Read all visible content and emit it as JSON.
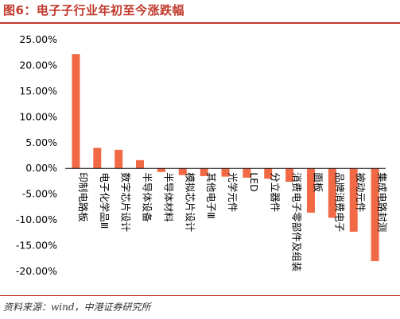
{
  "figure": {
    "title": "图6：电子子行业年初至今涨跌幅",
    "source": "资料来源：wind，中港证券研究所"
  },
  "colors": {
    "bar": "#f26a45",
    "title": "#c0392b",
    "axis": "#000000"
  },
  "chart_data": {
    "type": "bar",
    "categories": [
      "印制电路板",
      "电子化学品Ⅲ",
      "数字芯片设计",
      "半导体设备",
      "半导体材料",
      "模拟芯片设计",
      "其他电子Ⅲ",
      "光学元件",
      "LED",
      "分立器件",
      "消费电子零部件及组装",
      "面板",
      "品牌消费电子",
      "被动元件",
      "集成电路封测"
    ],
    "values": [
      22.2,
      4.0,
      3.6,
      1.6,
      -0.7,
      -1.3,
      -1.5,
      -1.6,
      -1.8,
      -2.0,
      -2.6,
      -8.6,
      -9.6,
      -12.3,
      -18.0
    ],
    "ylim": [
      -20,
      25
    ],
    "yticks": [
      25,
      20,
      15,
      10,
      5,
      0,
      -5,
      -10,
      -15,
      -20
    ],
    "ytick_labels": [
      "25.00%",
      "20.00%",
      "15.00%",
      "10.00%",
      "5.00%",
      "0.00%",
      "-5.00%",
      "-10.00%",
      "-15.00%",
      "-20.00%"
    ],
    "title": "",
    "xlabel": "",
    "ylabel": "",
    "grid": false,
    "legend": "none"
  }
}
